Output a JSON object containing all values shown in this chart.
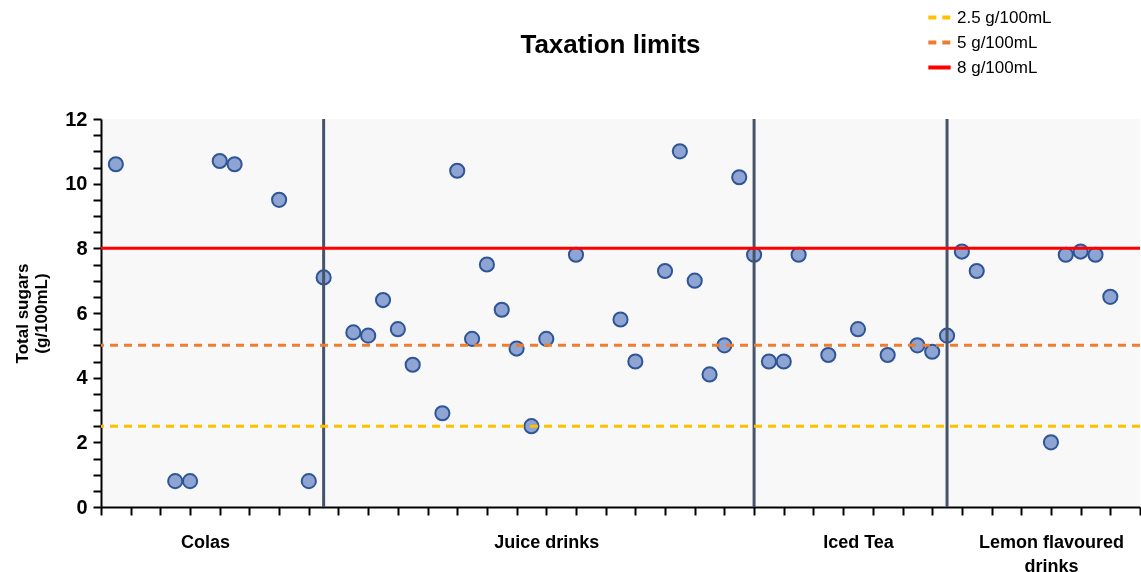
{
  "chart_data": {
    "type": "scatter",
    "title": "Taxation limits",
    "ylabel": "Total sugars (g/100mL)",
    "categories": [
      null,
      null,
      null,
      null,
      null,
      null,
      null,
      "Colas",
      null,
      null,
      null,
      null,
      null,
      null,
      null,
      null,
      null,
      null,
      null,
      null,
      null,
      null,
      null,
      null,
      null,
      null,
      null,
      null,
      null,
      null,
      "Juice drinks",
      null,
      null,
      null,
      null,
      null,
      null,
      null,
      null,
      null,
      null,
      null,
      null,
      null,
      null,
      null,
      null,
      null,
      null,
      null,
      null,
      "Iced Tea",
      null,
      null,
      null,
      null,
      null,
      null,
      null,
      null,
      null,
      null,
      null,
      null,
      "Lemon flavoured drinks",
      null,
      null,
      null,
      null,
      null,
      null
    ],
    "ylim": [
      0,
      12
    ],
    "yticks": [
      0,
      {
        "value": 0.5,
        "label": null
      },
      {
        "value": 1,
        "label": null
      },
      {
        "value": 1.5,
        "label": null
      },
      2,
      {
        "value": 2.5,
        "label": null
      },
      {
        "value": 3,
        "label": null
      },
      {
        "value": 3.5,
        "label": null
      },
      4,
      {
        "value": 4.5,
        "label": null
      },
      {
        "value": 5,
        "label": null
      },
      {
        "value": 5.5,
        "label": null
      },
      6,
      {
        "value": 6.5,
        "label": null
      },
      {
        "value": 7,
        "label": null
      },
      {
        "value": 7.5,
        "label": null
      },
      8,
      {
        "value": 8.5,
        "label": null
      },
      {
        "value": 9,
        "label": null
      },
      {
        "value": 9.5,
        "label": null
      },
      10,
      {
        "value": 10.5,
        "label": null
      },
      {
        "value": 11,
        "label": null
      },
      {
        "value": 11.5,
        "label": null
      },
      12
    ],
    "marker": "circle",
    "legend": "top right",
    "series": [
      {
        "color": "#8ea4d2",
        "values": [
          null,
          10.6,
          null,
          null,
          null,
          0.8,
          0.8,
          null,
          10.7,
          10.6,
          null,
          null,
          9.5,
          null,
          0.8,
          7.1,
          null,
          5.4,
          5.3,
          6.4,
          5.5,
          4.4,
          null,
          2.9,
          10.4,
          5.2,
          7.5,
          6.1,
          4.9,
          2.5,
          5.2,
          null,
          7.8,
          null,
          null,
          5.8,
          4.5,
          null,
          7.3,
          11.0,
          7.0,
          4.1,
          5.0,
          10.2,
          7.8,
          4.5,
          4.5,
          7.8,
          null,
          4.7,
          null,
          5.5,
          null,
          4.7,
          null,
          5.0,
          4.8,
          5.3,
          7.9,
          7.3,
          null,
          null,
          null,
          null,
          2.0,
          7.8,
          7.9,
          7.8,
          6.5,
          null,
          null
        ]
      }
    ],
    "ref_lines": [
      {
        "axis": "y",
        "value": 2.5,
        "label": "2.5 g/100mL",
        "color": "#ffc000",
        "line_style": "dashed"
      },
      {
        "axis": "y",
        "value": 5,
        "label": "5 g/100mL",
        "color": "#ed7d31",
        "line_style": "dashed"
      },
      {
        "axis": "y",
        "value": 8,
        "label": "8 g/100mL",
        "color": "#ff0000",
        "line_style": "solid"
      }
    ]
  }
}
